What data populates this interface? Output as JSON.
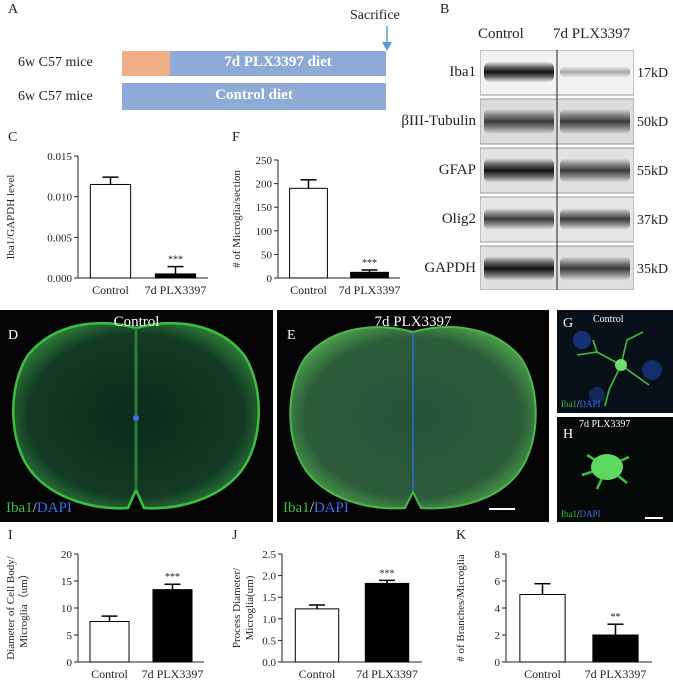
{
  "figure": {
    "panel_letters": {
      "A": "A",
      "B": "B",
      "C": "C",
      "F": "F",
      "D": "D",
      "E": "E",
      "G": "G",
      "H": "H",
      "I": "I",
      "J": "J",
      "K": "K"
    },
    "colors": {
      "diet_bar": "#8eaad6",
      "pre_diet": "#f0ae86",
      "arrow": "#5b9bd5",
      "iba1_green": "#3cbf3c",
      "dapi_blue": "#3b6ef0",
      "bar_black": "#000000",
      "bar_white": "#ffffff"
    }
  },
  "panel_a": {
    "sacrifice_label": "Sacrifice",
    "rows": [
      {
        "mouse": "6w C57 mice",
        "diet": "7d PLX3397 diet"
      },
      {
        "mouse": "6w C57 mice",
        "diet": "Control diet"
      }
    ]
  },
  "panel_b": {
    "columns": [
      "Control",
      "7d PLX3397"
    ],
    "bands": [
      {
        "protein": "Iba1",
        "size": "17kD"
      },
      {
        "protein": "βIII-Tubulin",
        "size": "50kD"
      },
      {
        "protein": "GFAP",
        "size": "55kD"
      },
      {
        "protein": "Olig2",
        "size": "37kD"
      },
      {
        "protein": "GAPDH",
        "size": "35kD"
      }
    ]
  },
  "micrographs": {
    "d_title": "Control",
    "e_title": "7d PLX3397",
    "g_title": "Control",
    "h_title": "7d PLX3397",
    "stain_iba1": "Iba1",
    "stain_sep": "/",
    "stain_dapi": "DAPI"
  },
  "chart_data": [
    {
      "id": "C",
      "type": "bar",
      "categories": [
        "Control",
        "7d PLX3397"
      ],
      "values": [
        0.0115,
        0.0005
      ],
      "errors": [
        0.0009,
        0.0009
      ],
      "ylabel": "Iba1/GAPDH level",
      "ylim": [
        0,
        0.015
      ],
      "yticks": [
        "0.000",
        "0.005",
        "0.010",
        "0.015"
      ],
      "significance": "***"
    },
    {
      "id": "F",
      "type": "bar",
      "categories": [
        "Control",
        "7d PLX3397"
      ],
      "values": [
        190,
        12
      ],
      "errors": [
        18,
        5
      ],
      "ylabel": "# of Microglia/section",
      "ylim": [
        0,
        250
      ],
      "yticks": [
        "0",
        "50",
        "100",
        "150",
        "200",
        "250"
      ],
      "significance": "***"
    },
    {
      "id": "I",
      "type": "bar",
      "categories": [
        "Control",
        "7d PLX3397"
      ],
      "values": [
        7.5,
        13.4
      ],
      "errors": [
        1.0,
        1.0
      ],
      "ylabel": "Diameter of Cell Body/ Microglia（um）",
      "ylim": [
        0,
        20
      ],
      "yticks": [
        "0",
        "5",
        "10",
        "15",
        "20"
      ],
      "significance": "***"
    },
    {
      "id": "J",
      "type": "bar",
      "categories": [
        "Control",
        "7d PLX3397"
      ],
      "values": [
        1.23,
        1.82
      ],
      "errors": [
        0.09,
        0.07
      ],
      "ylabel": "Process Diameter/ Microglia(um)",
      "ylim": [
        0,
        2.5
      ],
      "yticks": [
        "0.0",
        "0.5",
        "1.0",
        "1.5",
        "2.0",
        "2.5"
      ],
      "significance": "***"
    },
    {
      "id": "K",
      "type": "bar",
      "categories": [
        "Control",
        "7d PLX3397"
      ],
      "values": [
        5.0,
        2.0
      ],
      "errors": [
        0.8,
        0.8
      ],
      "ylabel": "# of Branches/Microglia",
      "ylim": [
        0,
        8
      ],
      "yticks": [
        "0",
        "2",
        "4",
        "6",
        "8"
      ],
      "significance": "**"
    }
  ]
}
